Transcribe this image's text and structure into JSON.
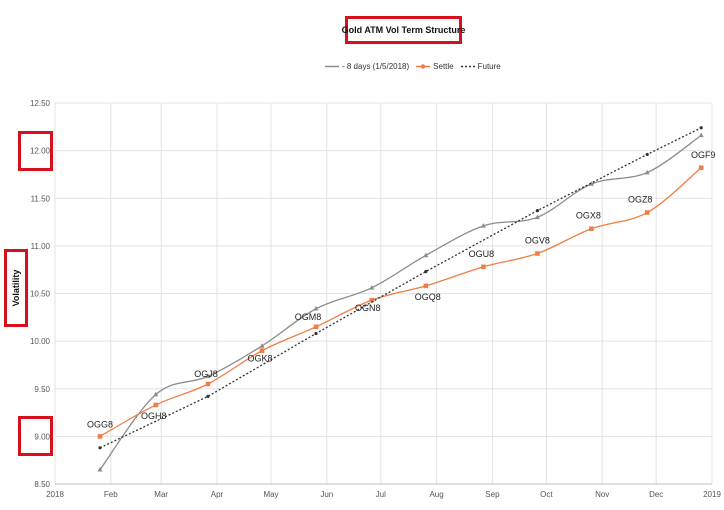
{
  "chart_data": {
    "type": "line",
    "title": "Gold ATM Vol Term Structure",
    "ylabel": "Volatility",
    "xlabel": "",
    "ylim": [
      8.5,
      12.5
    ],
    "yticks": [
      "8.50",
      "9.00",
      "9.50",
      "10.00",
      "10.50",
      "11.00",
      "11.50",
      "12.00",
      "12.50"
    ],
    "xticks": [
      "2018",
      "Feb",
      "Mar",
      "Apr",
      "May",
      "Jun",
      "Jul",
      "Aug",
      "Sep",
      "Oct",
      "Nov",
      "Dec",
      "2019"
    ],
    "grid": true,
    "legend_position": "top-center",
    "series": [
      {
        "name": "- 8 days (1/5/2018)",
        "color": "#8c8c8c",
        "style": "solid",
        "marker": "triangle",
        "x": [
          "2018-01-26",
          "2018-02-26",
          "2018-03-27",
          "2018-04-26",
          "2018-05-26",
          "2018-06-26",
          "2018-07-26",
          "2018-08-27",
          "2018-09-26",
          "2018-10-26",
          "2018-11-26",
          "2018-12-26"
        ],
        "values": [
          8.65,
          9.44,
          9.63,
          9.95,
          10.34,
          10.56,
          10.9,
          11.21,
          11.3,
          11.65,
          11.77,
          12.16
        ]
      },
      {
        "name": "Settle",
        "color": "#f07d44",
        "style": "solid",
        "marker": "square",
        "x": [
          "2018-01-26",
          "2018-02-26",
          "2018-03-27",
          "2018-04-26",
          "2018-05-26",
          "2018-06-26",
          "2018-07-26",
          "2018-08-27",
          "2018-09-26",
          "2018-10-26",
          "2018-11-26",
          "2018-12-26"
        ],
        "values": [
          9.0,
          9.33,
          9.55,
          9.9,
          10.15,
          10.43,
          10.58,
          10.78,
          10.92,
          11.18,
          11.35,
          11.82
        ],
        "labels": [
          "OGG8",
          "OGH8",
          "OGJ8",
          "OGK8",
          "OGM8",
          "OGN8",
          "OGQ8",
          "OGU8",
          "OGV8",
          "OGX8",
          "OGZ8",
          "OGF9"
        ]
      },
      {
        "name": "Future",
        "color": "#333333",
        "style": "dashed",
        "marker": "circle",
        "x": [
          "2018-01-26",
          "2018-03-27",
          "2018-05-26",
          "2018-07-26",
          "2018-09-26",
          "2018-11-26",
          "2018-12-26"
        ],
        "values": [
          8.88,
          9.42,
          10.08,
          10.73,
          11.37,
          11.96,
          12.24
        ]
      }
    ]
  }
}
